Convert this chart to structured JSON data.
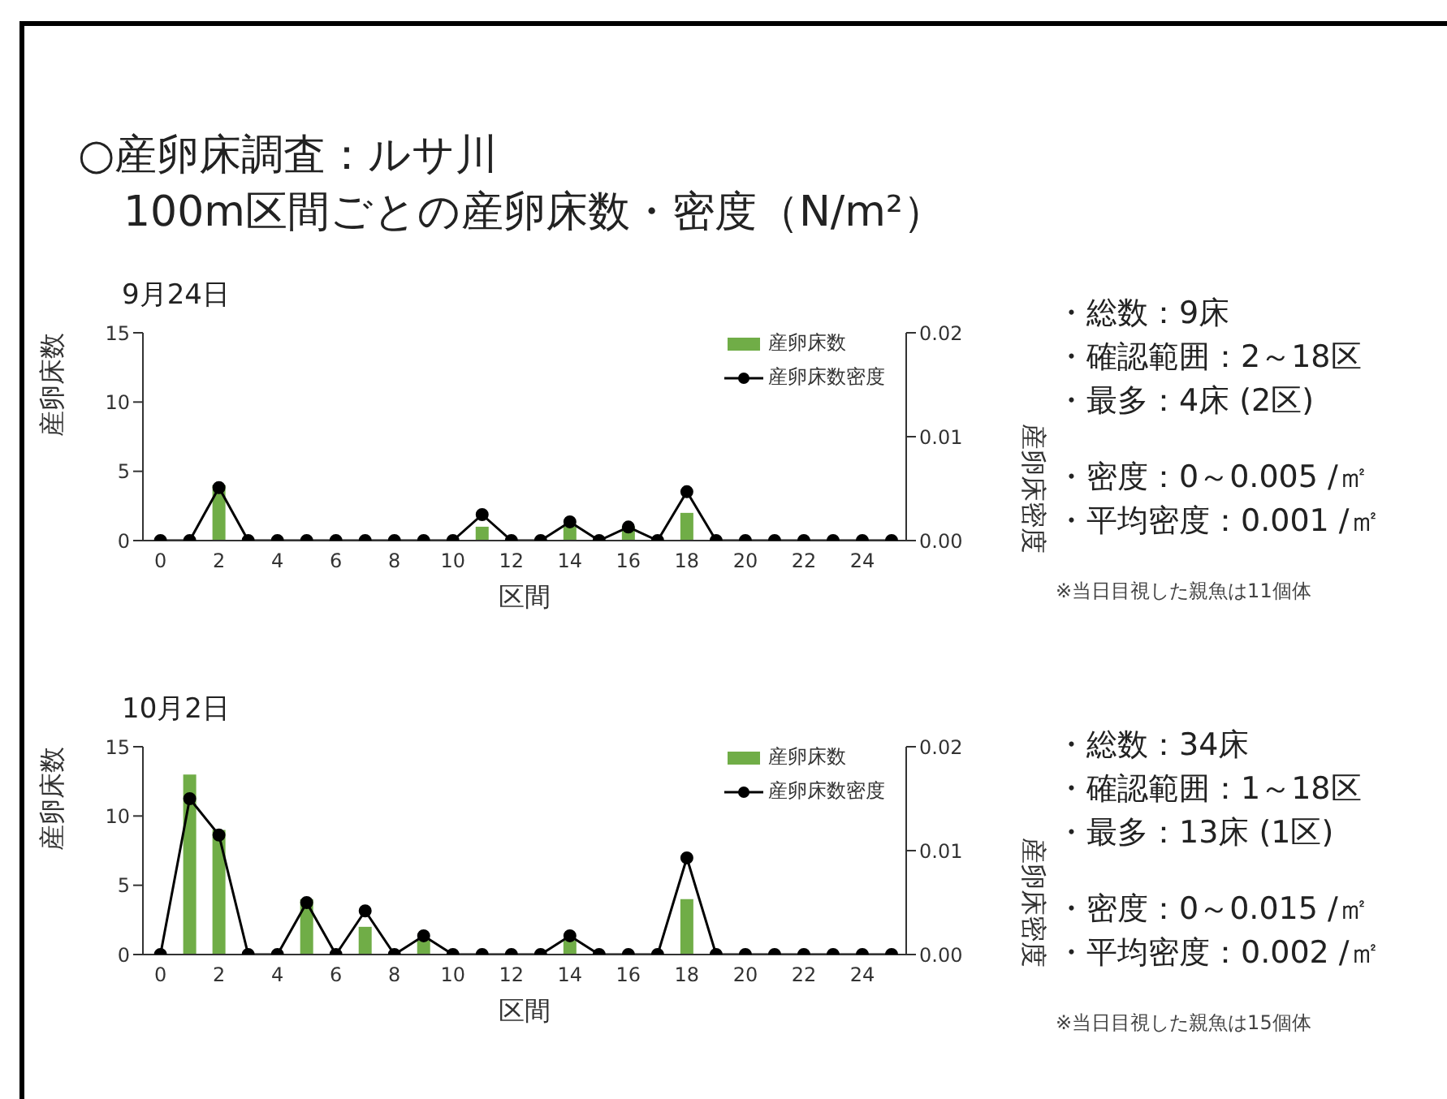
{
  "chart_data": [
    {
      "type": "other",
      "title": "○産卵床調査：ルサ川",
      "subtitle": "100m区間ごとの産卵床数・密度（N/m²）"
    },
    {
      "type": "bar",
      "title": "9月24日",
      "xlabel": "区間",
      "ylabel": "産卵床数",
      "y2label": "産卵床密度",
      "x": [
        0,
        1,
        2,
        3,
        4,
        5,
        6,
        7,
        8,
        9,
        10,
        11,
        12,
        13,
        14,
        15,
        16,
        17,
        18,
        19,
        20,
        21,
        22,
        23,
        24,
        25
      ],
      "xlim": [
        -0.6,
        25.5
      ],
      "xticks": [
        0,
        2,
        4,
        6,
        8,
        10,
        12,
        14,
        16,
        18,
        20,
        22,
        24
      ],
      "ylim": [
        0,
        15
      ],
      "yticks": [
        0,
        5,
        10,
        15
      ],
      "y2lim": [
        0,
        0.02
      ],
      "y2ticks": [
        {
          "value": 0,
          "label": "0.00"
        },
        {
          "value": 0.01,
          "label": "0.01"
        },
        {
          "value": 0.02,
          "label": "0.02"
        }
      ],
      "legend": "top right",
      "series": [
        {
          "name": "産卵床数",
          "type": "bar",
          "color": "#70ad47",
          "values": [
            0,
            0,
            4,
            0,
            0,
            0,
            0,
            0,
            0,
            0,
            0,
            1,
            0,
            0,
            1,
            0,
            1,
            0,
            2,
            0,
            0,
            0,
            0,
            0,
            0,
            0
          ]
        },
        {
          "name": "産卵床数密度",
          "type": "line",
          "axis": "y2",
          "color": "#000000",
          "marker": "circle",
          "values": [
            0,
            0,
            0.0051,
            0,
            0,
            0,
            0,
            0,
            0,
            0,
            0,
            0.0025,
            0,
            0,
            0.0018,
            0,
            0.0013,
            0,
            0.0047,
            0,
            0,
            0,
            0,
            0,
            0,
            0
          ]
        }
      ]
    },
    {
      "type": "other",
      "annotations": [
        "・総数：9床",
        "・確認範囲：2～18区",
        "・最多：4床 (2区)",
        "・密度：0～0.005 /㎡",
        "・平均密度：0.001 /㎡",
        "※当日目視した親魚は11個体"
      ]
    },
    {
      "type": "bar",
      "title": "10月2日",
      "xlabel": "区間",
      "ylabel": "産卵床数",
      "y2label": "産卵床密度",
      "x": [
        0,
        1,
        2,
        3,
        4,
        5,
        6,
        7,
        8,
        9,
        10,
        11,
        12,
        13,
        14,
        15,
        16,
        17,
        18,
        19,
        20,
        21,
        22,
        23,
        24,
        25
      ],
      "xlim": [
        -0.6,
        25.5
      ],
      "xticks": [
        0,
        2,
        4,
        6,
        8,
        10,
        12,
        14,
        16,
        18,
        20,
        22,
        24
      ],
      "ylim": [
        0,
        15
      ],
      "yticks": [
        0,
        5,
        10,
        15
      ],
      "y2lim": [
        0,
        0.02
      ],
      "y2ticks": [
        {
          "value": 0,
          "label": "0.00"
        },
        {
          "value": 0.01,
          "label": "0.01"
        },
        {
          "value": 0.02,
          "label": "0.02"
        }
      ],
      "legend": "top right",
      "series": [
        {
          "name": "産卵床数",
          "type": "bar",
          "color": "#70ad47",
          "values": [
            0,
            13,
            9,
            0,
            0,
            4,
            0,
            2,
            0,
            1,
            0,
            0,
            0,
            0,
            1,
            0,
            0,
            0,
            4,
            0,
            0,
            0,
            0,
            0,
            0,
            0
          ]
        },
        {
          "name": "産卵床数密度",
          "type": "line",
          "axis": "y2",
          "color": "#000000",
          "marker": "circle",
          "values": [
            0,
            0.015,
            0.0115,
            0,
            0,
            0.005,
            0,
            0.0042,
            0,
            0.0018,
            0,
            0,
            0,
            0,
            0.0018,
            0,
            0,
            0,
            0.0093,
            0,
            0,
            0,
            0,
            0,
            0,
            0
          ]
        }
      ]
    },
    {
      "type": "other",
      "annotations": [
        "・総数：34床",
        "・確認範囲：1～18区",
        "・最多：13床 (1区)",
        "・密度：0～0.015 /㎡",
        "・平均密度：0.002 /㎡",
        "※当日目視した親魚は15個体"
      ]
    }
  ]
}
